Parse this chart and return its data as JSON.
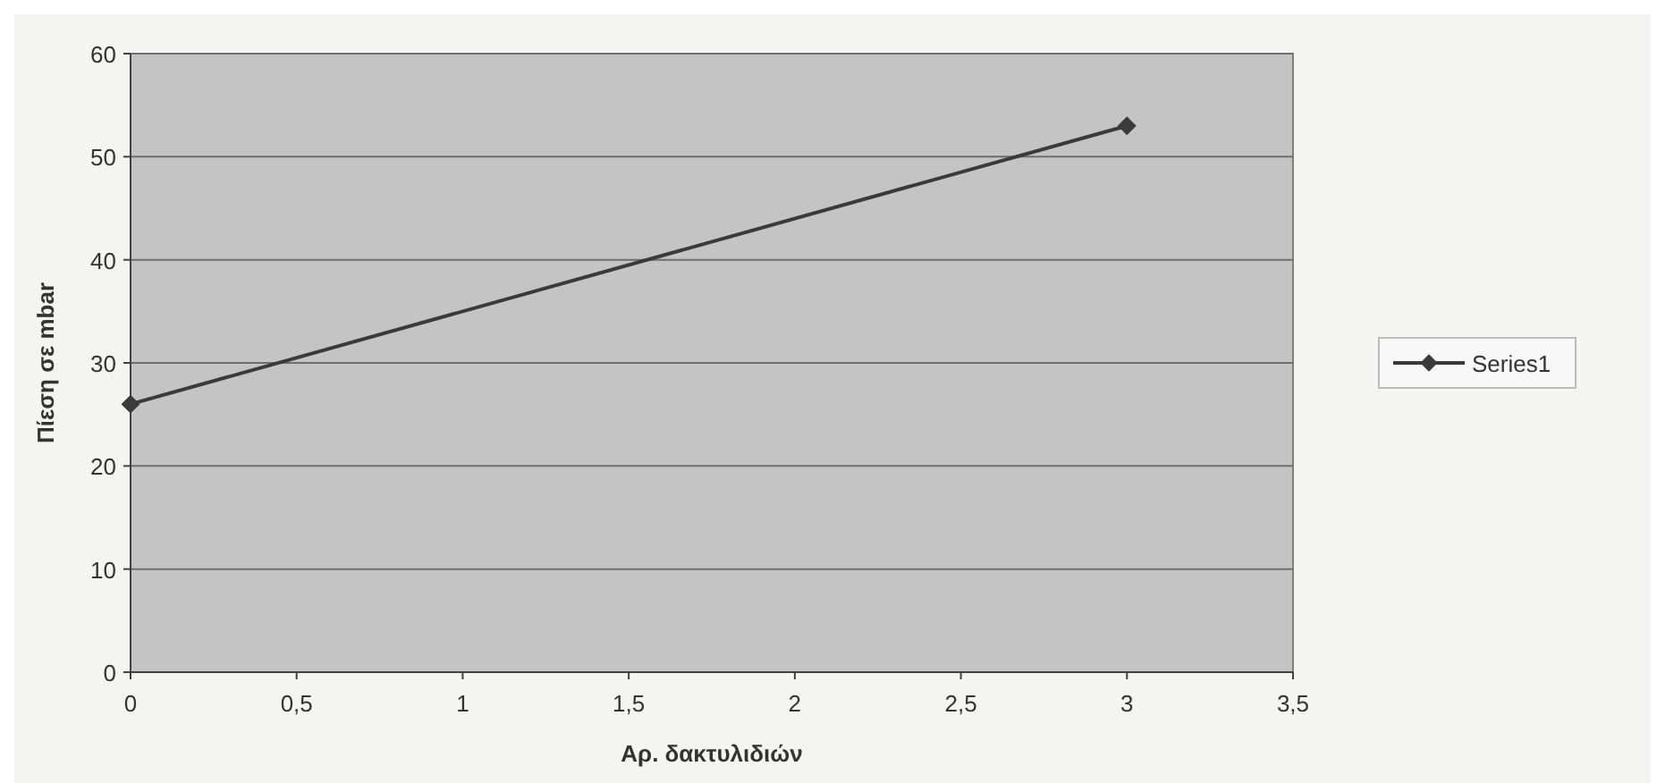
{
  "chart_data": {
    "type": "line",
    "xlabel": "Αρ. δακτυλιδιών",
    "ylabel": "Πίεση σε mbar",
    "x": [
      0,
      3
    ],
    "series": [
      {
        "name": "Series1",
        "color": "#3a3a3a",
        "values": [
          26,
          53
        ]
      }
    ],
    "xlim": [
      0,
      3.5
    ],
    "ylim": [
      0,
      60
    ],
    "xticks": [
      0,
      {
        "value": 0.5,
        "label": "0,5"
      },
      1,
      {
        "value": 1.5,
        "label": "1,5"
      },
      2,
      {
        "value": 2.5,
        "label": "2,5"
      },
      3,
      {
        "value": 3.5,
        "label": "3,5"
      }
    ],
    "yticks": [
      0,
      10,
      20,
      30,
      40,
      50,
      60
    ],
    "grid": "y",
    "legend": "right",
    "marker": "diamond",
    "line_style": "solid"
  }
}
